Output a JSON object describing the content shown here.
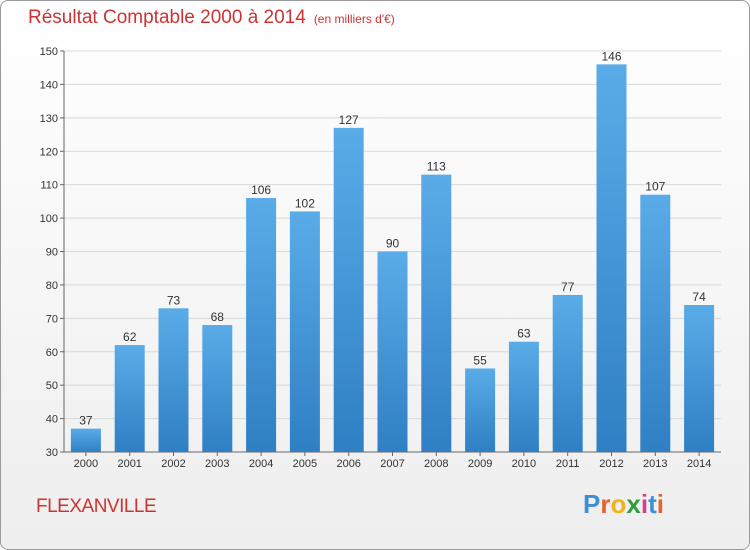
{
  "title": "Résultat Comptable 2000 à 2014",
  "subtitle": "(en milliers d'€)",
  "commune": "FLEXANVILLE",
  "logo": [
    "P",
    "r",
    "o",
    "x",
    "i",
    "t",
    "i"
  ],
  "logo_colors": [
    "#3b8fd6",
    "#e8612c",
    "#f2b21b",
    "#2e9d3a",
    "#d63c8f",
    "#3b8fd6",
    "#e8612c"
  ],
  "chart_data": {
    "type": "bar",
    "categories": [
      "2000",
      "2001",
      "2002",
      "2003",
      "2004",
      "2005",
      "2006",
      "2007",
      "2008",
      "2009",
      "2010",
      "2011",
      "2012",
      "2013",
      "2014"
    ],
    "values": [
      37,
      62,
      73,
      68,
      106,
      102,
      127,
      90,
      113,
      55,
      63,
      77,
      146,
      107,
      74
    ],
    "ylim": [
      30,
      150
    ],
    "yticks": [
      30,
      40,
      50,
      60,
      70,
      80,
      90,
      100,
      110,
      120,
      130,
      140,
      150
    ],
    "grid": true,
    "bar_color": "#4a9ee0"
  }
}
